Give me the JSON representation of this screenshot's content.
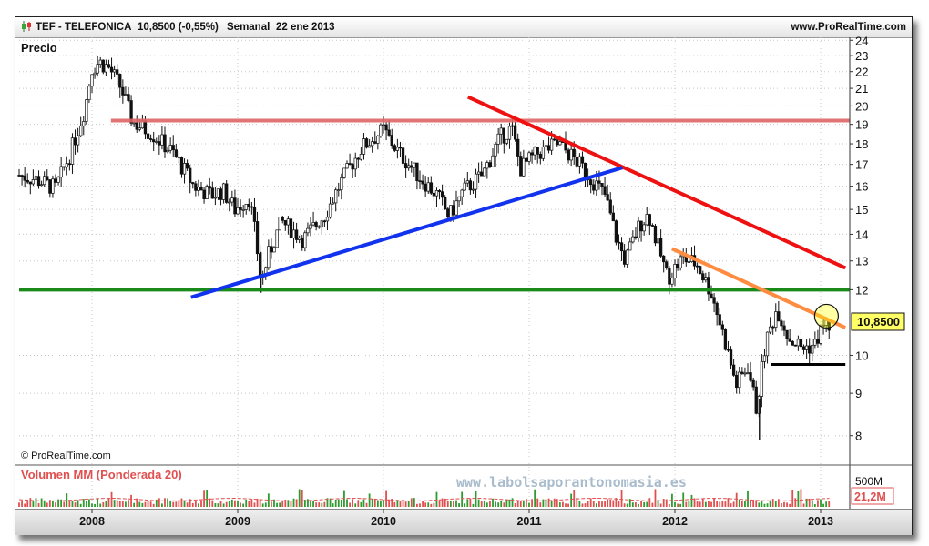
{
  "header": {
    "ticker": "TEF - TELEFONICA",
    "quote": "10,8500 (-0,55%)",
    "period": "Semanal",
    "date": "22 ene 2013",
    "site": "www.ProRealTime.com"
  },
  "colors": {
    "candles": "#111111",
    "resistance": "#e06666",
    "support_green": "#1a8a1a",
    "trend_red": "#ee1111",
    "trend_blue": "#1133ee",
    "trend_orange": "#ff8c40",
    "floor_line": "#000000",
    "price_badge": "#ffff66",
    "volume_up": "#2e9b2e",
    "volume_down": "#e05050"
  },
  "chart_data": {
    "type": "candlestick",
    "title": "Precio",
    "copyright": "© ProRealTime.com",
    "watermark": "www.labolsaporantonomasia.es",
    "last_price_label": "10,8500",
    "x_ticks": [
      "2008",
      "2009",
      "2010",
      "2011",
      "2012",
      "2013"
    ],
    "y_ticks": [
      "24",
      "23",
      "22",
      "21",
      "20",
      "19",
      "18",
      "17",
      "16",
      "15",
      "14",
      "13",
      "12",
      "10",
      "9",
      "8"
    ],
    "ylim": [
      7.6,
      24.2
    ],
    "y_scale": "log",
    "grid": true,
    "price_path": [
      {
        "t": 2007.5,
        "y": 16.5
      },
      {
        "t": 2007.62,
        "y": 16.3
      },
      {
        "t": 2007.75,
        "y": 15.9
      },
      {
        "t": 2007.85,
        "y": 17.5
      },
      {
        "t": 2007.95,
        "y": 19.8
      },
      {
        "t": 2008.0,
        "y": 22.2
      },
      {
        "t": 2008.05,
        "y": 22.6
      },
      {
        "t": 2008.12,
        "y": 22.2
      },
      {
        "t": 2008.2,
        "y": 21.0
      },
      {
        "t": 2008.28,
        "y": 19.1
      },
      {
        "t": 2008.4,
        "y": 18.6
      },
      {
        "t": 2008.55,
        "y": 17.6
      },
      {
        "t": 2008.7,
        "y": 16.0
      },
      {
        "t": 2008.82,
        "y": 15.6
      },
      {
        "t": 2008.9,
        "y": 15.8
      },
      {
        "t": 2008.98,
        "y": 15.0
      },
      {
        "t": 2009.08,
        "y": 15.5
      },
      {
        "t": 2009.12,
        "y": 14.0
      },
      {
        "t": 2009.16,
        "y": 12.2
      },
      {
        "t": 2009.21,
        "y": 13.2
      },
      {
        "t": 2009.3,
        "y": 14.5
      },
      {
        "t": 2009.45,
        "y": 13.8
      },
      {
        "t": 2009.6,
        "y": 14.8
      },
      {
        "t": 2009.72,
        "y": 16.3
      },
      {
        "t": 2009.85,
        "y": 17.8
      },
      {
        "t": 2010.0,
        "y": 18.7
      },
      {
        "t": 2010.1,
        "y": 17.6
      },
      {
        "t": 2010.25,
        "y": 16.4
      },
      {
        "t": 2010.37,
        "y": 15.6
      },
      {
        "t": 2010.45,
        "y": 14.7
      },
      {
        "t": 2010.55,
        "y": 15.8
      },
      {
        "t": 2010.68,
        "y": 16.5
      },
      {
        "t": 2010.8,
        "y": 18.3
      },
      {
        "t": 2010.88,
        "y": 18.8
      },
      {
        "t": 2010.94,
        "y": 16.8
      },
      {
        "t": 2011.05,
        "y": 17.5
      },
      {
        "t": 2011.2,
        "y": 18.0
      },
      {
        "t": 2011.32,
        "y": 17.2
      },
      {
        "t": 2011.42,
        "y": 16.4
      },
      {
        "t": 2011.52,
        "y": 15.6
      },
      {
        "t": 2011.6,
        "y": 13.8
      },
      {
        "t": 2011.66,
        "y": 13.0
      },
      {
        "t": 2011.76,
        "y": 14.4
      },
      {
        "t": 2011.82,
        "y": 14.8
      },
      {
        "t": 2011.88,
        "y": 13.6
      },
      {
        "t": 2011.95,
        "y": 12.4
      },
      {
        "t": 2012.05,
        "y": 13.1
      },
      {
        "t": 2012.15,
        "y": 12.9
      },
      {
        "t": 2012.25,
        "y": 11.9
      },
      {
        "t": 2012.33,
        "y": 10.6
      },
      {
        "t": 2012.42,
        "y": 9.2
      },
      {
        "t": 2012.5,
        "y": 9.7
      },
      {
        "t": 2012.56,
        "y": 8.6
      },
      {
        "t": 2012.62,
        "y": 10.3
      },
      {
        "t": 2012.7,
        "y": 11.4
      },
      {
        "t": 2012.78,
        "y": 10.5
      },
      {
        "t": 2012.88,
        "y": 10.2
      },
      {
        "t": 2012.96,
        "y": 10.3
      },
      {
        "t": 2013.02,
        "y": 10.9
      },
      {
        "t": 2013.06,
        "y": 10.85
      }
    ],
    "extreme_lows": [
      {
        "t": 2009.16,
        "y": 11.9
      },
      {
        "t": 2012.58,
        "y": 7.9
      }
    ],
    "lines": [
      {
        "name": "resistance",
        "x1": 2008.13,
        "y1": 19.2,
        "x2": 2013.2,
        "y2": 19.2,
        "color_key": "resistance"
      },
      {
        "name": "support",
        "x1": 2007.5,
        "y1": 12.0,
        "x2": 2013.2,
        "y2": 12.0,
        "color_key": "support_green"
      },
      {
        "name": "downtrend-long",
        "x1": 2010.58,
        "y1": 20.5,
        "x2": 2013.17,
        "y2": 12.75,
        "color_key": "trend_red"
      },
      {
        "name": "uptrend",
        "x1": 2008.68,
        "y1": 11.75,
        "x2": 2011.64,
        "y2": 16.85,
        "color_key": "trend_blue"
      },
      {
        "name": "downtrend-short",
        "x1": 2011.98,
        "y1": 13.45,
        "x2": 2013.17,
        "y2": 10.8,
        "color_key": "trend_orange"
      },
      {
        "name": "floor",
        "x1": 2012.66,
        "y1": 9.75,
        "x2": 2013.17,
        "y2": 9.75,
        "color_key": "floor_line"
      }
    ],
    "highlight_circle": {
      "t": 2013.04,
      "y": 11.15
    },
    "volume": {
      "label": "Volumen MM (Ponderada 20)",
      "max_label": "500M",
      "last_label": "21,2M"
    }
  }
}
